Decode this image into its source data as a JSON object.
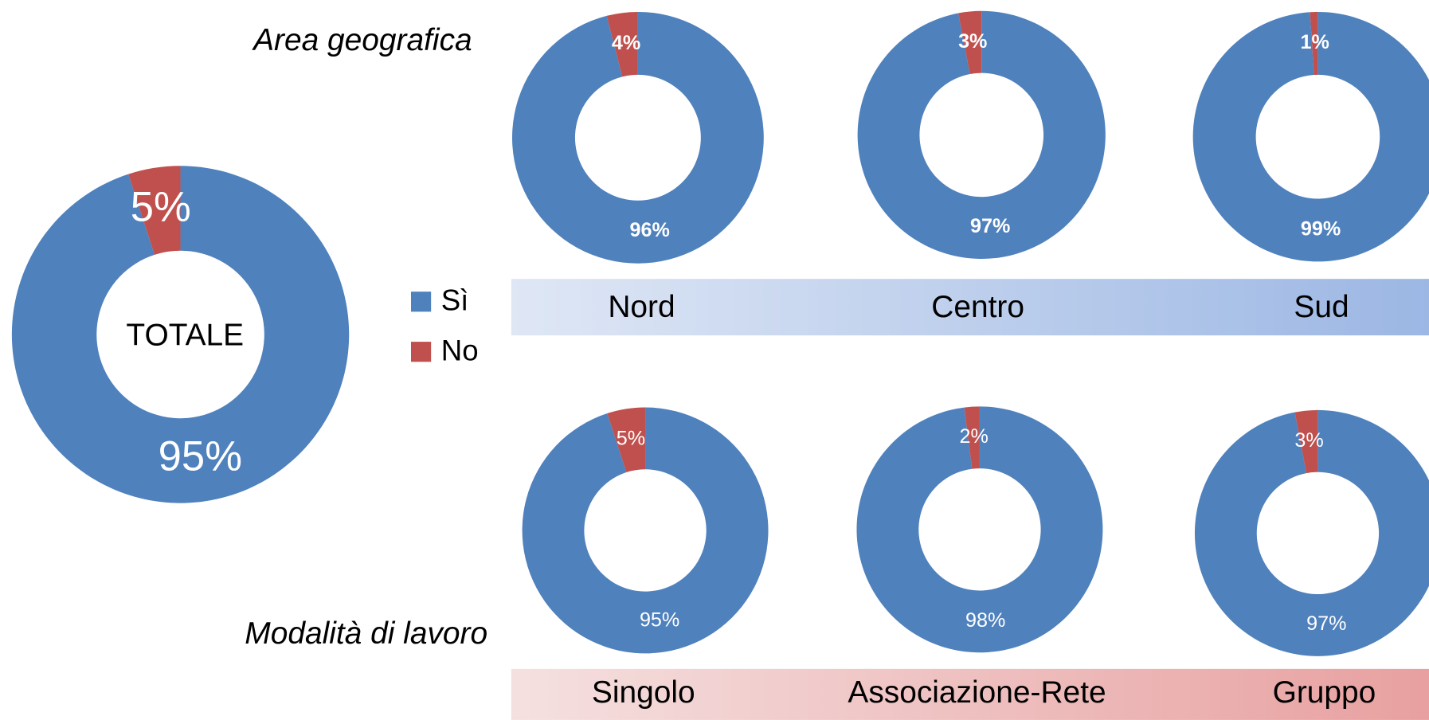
{
  "chart_data": [
    {
      "type": "pie",
      "title": "TOTALE",
      "categories": [
        "Sì",
        "No"
      ],
      "values": [
        95,
        5
      ],
      "value_labels": [
        "95%",
        "5%"
      ],
      "colors": [
        "#4f81bd",
        "#c0504d"
      ],
      "legend": true
    },
    {
      "type": "pie",
      "title": "Nord",
      "categories": [
        "Sì",
        "No"
      ],
      "values": [
        96,
        4
      ],
      "value_labels": [
        "96%",
        "4%"
      ],
      "colors": [
        "#4f81bd",
        "#c0504d"
      ]
    },
    {
      "type": "pie",
      "title": "Centro",
      "categories": [
        "Sì",
        "No"
      ],
      "values": [
        97,
        3
      ],
      "value_labels": [
        "97%",
        "3%"
      ],
      "colors": [
        "#4f81bd",
        "#c0504d"
      ]
    },
    {
      "type": "pie",
      "title": "Sud",
      "categories": [
        "Sì",
        "No"
      ],
      "values": [
        99,
        1
      ],
      "value_labels": [
        "99%",
        "1%"
      ],
      "colors": [
        "#4f81bd",
        "#c0504d"
      ]
    },
    {
      "type": "pie",
      "title": "Singolo",
      "categories": [
        "Sì",
        "No"
      ],
      "values": [
        95,
        5
      ],
      "value_labels": [
        "95%",
        "5%"
      ],
      "colors": [
        "#4f81bd",
        "#c0504d"
      ]
    },
    {
      "type": "pie",
      "title": "Associazione-Rete",
      "categories": [
        "Sì",
        "No"
      ],
      "values": [
        98,
        2
      ],
      "value_labels": [
        "98%",
        "2%"
      ],
      "colors": [
        "#4f81bd",
        "#c0504d"
      ]
    },
    {
      "type": "pie",
      "title": "Gruppo",
      "categories": [
        "Sì",
        "No"
      ],
      "values": [
        97,
        3
      ],
      "value_labels": [
        "97%",
        "3%"
      ],
      "colors": [
        "#4f81bd",
        "#c0504d"
      ]
    }
  ],
  "sections": [
    {
      "title": "Area geografica"
    },
    {
      "title": "Modalità di lavoro"
    }
  ]
}
